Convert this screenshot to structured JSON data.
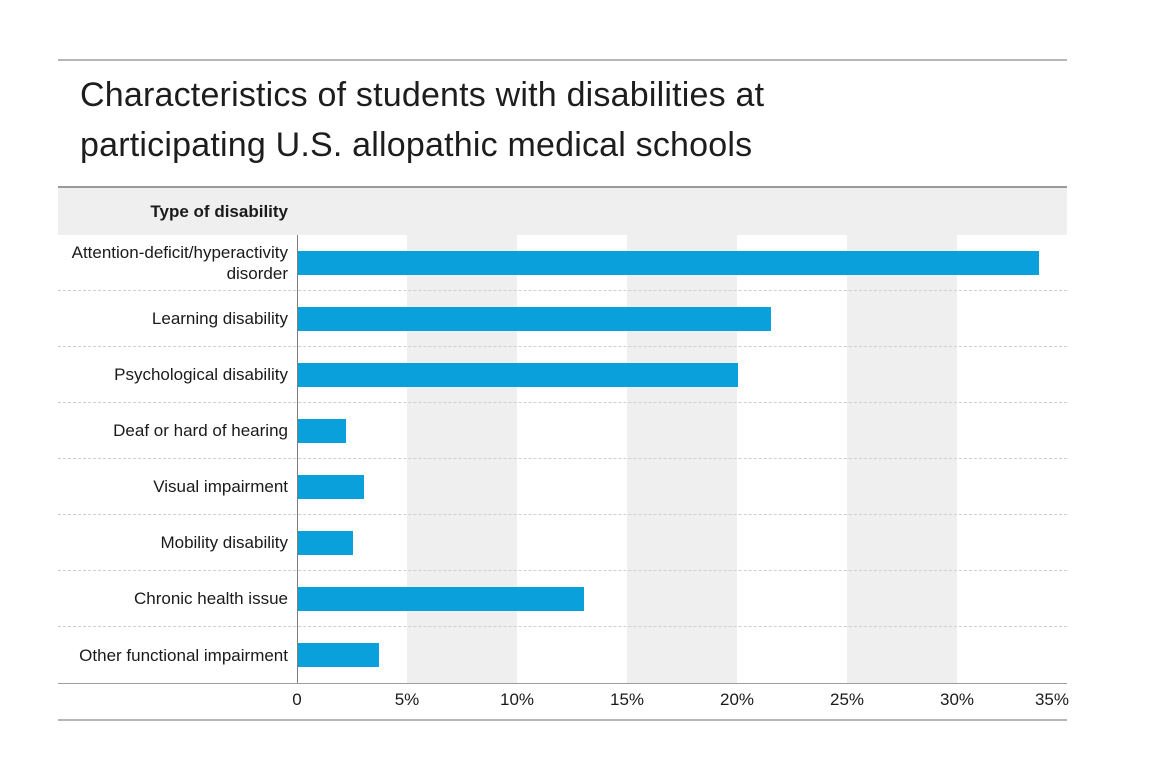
{
  "title": {
    "lines": [
      "Characteristics of students with disabilities at",
      "participating U.S. allopathic medical schools"
    ]
  },
  "chart_data": {
    "type": "bar",
    "orientation": "horizontal",
    "title": "Characteristics of students with disabilities at participating U.S. allopathic medical schools",
    "column_header": "Type of disability",
    "categories": [
      "Attention-deficit/hyperactivity disorder",
      "Learning disability",
      "Psychological disability",
      "Deaf or hard of hearing",
      "Visual impairment",
      "Mobility disability",
      "Chronic health issue",
      "Other functional impairment"
    ],
    "values": [
      33.7,
      21.5,
      20.0,
      2.2,
      3.0,
      2.5,
      13.0,
      3.7
    ],
    "unit": "percent",
    "xlabel": "",
    "ylabel": "Type of disability",
    "xlim": [
      0,
      35
    ],
    "xtick_values": [
      0,
      5,
      10,
      15,
      20,
      25,
      30,
      35
    ],
    "xtick_labels": [
      "0",
      "5%",
      "10%",
      "15%",
      "20%",
      "25%",
      "30%",
      "35%"
    ],
    "stripe_bands": [
      [
        5,
        10
      ],
      [
        15,
        20
      ],
      [
        25,
        30
      ]
    ],
    "legend": "none",
    "colors": {
      "bar": "#0aa0dc",
      "band": "#efefef",
      "text": "#1a1a1a",
      "rule": "#b7b7b7"
    }
  }
}
